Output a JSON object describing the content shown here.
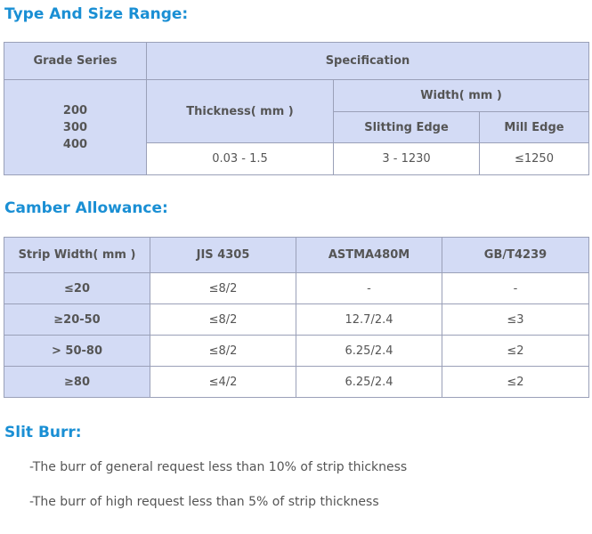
{
  "type_size": {
    "title": "Type And Size Range:",
    "grade_header": "Grade Series",
    "spec_header": "Specification",
    "thickness_header": "Thickness( mm )",
    "width_header": "Width( mm )",
    "slitting_header": "Slitting Edge",
    "mill_header": "Mill Edge",
    "grades": [
      "200",
      "300",
      "400"
    ],
    "thickness_value": "0.03 - 1.5",
    "slitting_value": "3 - 1230",
    "mill_value": "≤1250"
  },
  "camber": {
    "title": "Camber Allowance:",
    "headers": [
      "Strip Width( mm )",
      "JIS 4305",
      "ASTMA480M",
      "GB/T4239"
    ],
    "rows": [
      [
        "≤20",
        "≤8/2",
        "-",
        "-"
      ],
      [
        "≥20-50",
        "≤8/2",
        "12.7/2.4",
        "≤3"
      ],
      [
        "> 50-80",
        "≤8/2",
        "6.25/2.4",
        "≤2"
      ],
      [
        "≥80",
        "≤4/2",
        "6.25/2.4",
        "≤2"
      ]
    ]
  },
  "slit_burr": {
    "title": "Slit Burr:",
    "lines": [
      "-The burr of general request less than 10% of strip thickness",
      "-The burr of high request less than 5% of strip thickness"
    ]
  }
}
